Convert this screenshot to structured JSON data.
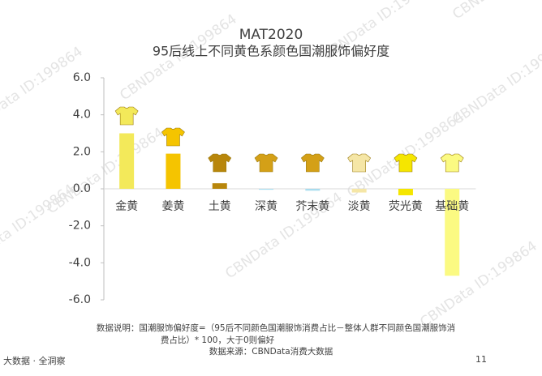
{
  "chart_data": {
    "type": "bar",
    "title": "MAT2020",
    "subtitle": "95后线上不同黄色系颜色国潮服饰偏好度",
    "categories": [
      "金黄",
      "姜黄",
      "土黄",
      "深黄",
      "芥末黄",
      "淡黄",
      "荧光黄",
      "基础黄"
    ],
    "values": [
      3.0,
      1.9,
      0.3,
      -0.05,
      -0.1,
      -0.2,
      -0.35,
      -4.7
    ],
    "colors": [
      "#f3e95a",
      "#f5c400",
      "#b8860b",
      "#a8dcef",
      "#a8dcef",
      "#f5e6a6",
      "#f5e600",
      "#fbfa82"
    ],
    "ylim": [
      -6,
      6
    ],
    "yticks": [
      {
        "value": 6,
        "label": "6.0"
      },
      {
        "value": 4,
        "label": "4.0"
      },
      {
        "value": 2,
        "label": "2.0"
      },
      {
        "value": 0,
        "label": "0.0"
      },
      {
        "value": -2,
        "label": "-2.0"
      },
      {
        "value": -4,
        "label": "-4.0"
      },
      {
        "value": -6,
        "label": "-6.0"
      }
    ],
    "grid": false,
    "notes": [
      "数据说明：国潮服饰偏好度=（95后不同颜色国潮服饰消费占比－整体人群不同颜色国潮服饰消",
      "费占比）* 100，大于0则偏好"
    ],
    "source": "数据来源：CBNData消费大数据",
    "watermark": "CBNData ID:199864"
  },
  "footer": {
    "slogan": "大数据 · 全洞察",
    "page": "11"
  }
}
